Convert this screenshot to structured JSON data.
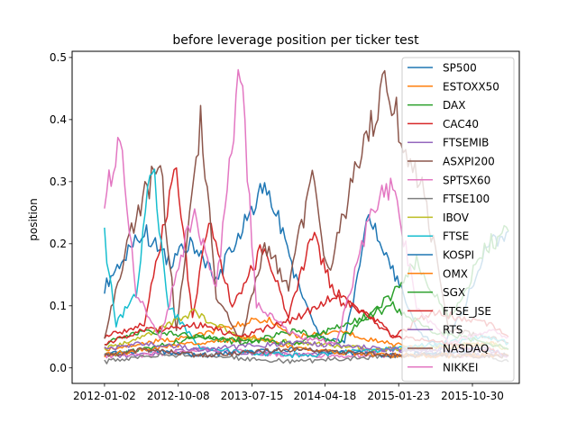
{
  "chart_data": {
    "type": "line",
    "title": "before leverage position per ticker test",
    "xlabel": "",
    "ylabel": "position",
    "x_range": [
      "2011-09-01",
      "2016-04-25"
    ],
    "ylim": [
      -0.025,
      0.51
    ],
    "x_ticks": [
      "2012-01-02",
      "2012-10-08",
      "2013-07-15",
      "2014-04-18",
      "2015-01-23",
      "2015-10-30"
    ],
    "y_ticks": [
      "0.0",
      "0.1",
      "0.2",
      "0.3",
      "0.4",
      "0.5"
    ],
    "grid": false,
    "legend_position": "upper right",
    "series": [
      {
        "name": "SP500",
        "color": "#1f77b4",
        "points": [
          [
            "2012-01-02",
            0.13
          ],
          [
            "2012-03-15",
            0.18
          ],
          [
            "2012-06-01",
            0.22
          ],
          [
            "2012-09-01",
            0.17
          ],
          [
            "2012-12-01",
            0.2
          ],
          [
            "2013-03-01",
            0.14
          ],
          [
            "2013-06-01",
            0.22
          ],
          [
            "2013-09-01",
            0.29
          ],
          [
            "2013-11-01",
            0.23
          ],
          [
            "2014-01-15",
            0.12
          ],
          [
            "2014-04-01",
            0.05
          ],
          [
            "2014-07-01",
            0.04
          ],
          [
            "2014-10-01",
            0.24
          ],
          [
            "2015-01-01",
            0.16
          ],
          [
            "2015-04-01",
            0.06
          ],
          [
            "2015-07-01",
            0.03
          ],
          [
            "2015-10-01",
            0.1
          ],
          [
            "2016-01-01",
            0.2
          ],
          [
            "2016-03-15",
            0.22
          ]
        ]
      },
      {
        "name": "ESTOXX50",
        "color": "#ff7f0e",
        "points": [
          [
            "2012-01-02",
            0.03
          ],
          [
            "2012-06-01",
            0.04
          ],
          [
            "2012-12-01",
            0.05
          ],
          [
            "2013-06-01",
            0.07
          ],
          [
            "2013-09-01",
            0.08
          ],
          [
            "2014-01-01",
            0.05
          ],
          [
            "2014-06-01",
            0.06
          ],
          [
            "2014-12-01",
            0.04
          ],
          [
            "2015-06-01",
            0.03
          ],
          [
            "2016-01-01",
            0.04
          ],
          [
            "2016-03-15",
            0.03
          ]
        ]
      },
      {
        "name": "DAX",
        "color": "#2ca02c",
        "points": [
          [
            "2012-01-02",
            0.02
          ],
          [
            "2012-06-01",
            0.03
          ],
          [
            "2013-01-01",
            0.05
          ],
          [
            "2013-06-01",
            0.04
          ],
          [
            "2014-01-01",
            0.06
          ],
          [
            "2014-06-01",
            0.04
          ],
          [
            "2015-01-01",
            0.12
          ],
          [
            "2015-04-01",
            0.17
          ],
          [
            "2015-08-01",
            0.08
          ],
          [
            "2016-01-01",
            0.2
          ],
          [
            "2016-03-15",
            0.22
          ]
        ]
      },
      {
        "name": "CAC40",
        "color": "#d62728",
        "points": [
          [
            "2012-01-02",
            0.05
          ],
          [
            "2012-06-01",
            0.07
          ],
          [
            "2012-10-01",
            0.33
          ],
          [
            "2012-12-01",
            0.08
          ],
          [
            "2013-02-01",
            0.24
          ],
          [
            "2013-05-01",
            0.1
          ],
          [
            "2013-09-01",
            0.2
          ],
          [
            "2013-12-01",
            0.08
          ],
          [
            "2014-03-01",
            0.22
          ],
          [
            "2014-06-01",
            0.11
          ],
          [
            "2014-10-01",
            0.09
          ],
          [
            "2015-01-01",
            0.05
          ],
          [
            "2015-06-01",
            0.09
          ],
          [
            "2016-01-01",
            0.07
          ],
          [
            "2016-03-15",
            0.05
          ]
        ]
      },
      {
        "name": "FTSEMIB",
        "color": "#9467bd",
        "points": [
          [
            "2012-01-02",
            0.02
          ],
          [
            "2012-06-01",
            0.02
          ],
          [
            "2013-01-01",
            0.03
          ],
          [
            "2014-01-01",
            0.02
          ],
          [
            "2015-01-01",
            0.03
          ],
          [
            "2016-01-01",
            0.02
          ],
          [
            "2016-03-15",
            0.02
          ]
        ]
      },
      {
        "name": "ASXPI200",
        "color": "#8c564b",
        "points": [
          [
            "2012-01-02",
            0.05
          ],
          [
            "2012-03-01",
            0.15
          ],
          [
            "2012-05-01",
            0.25
          ],
          [
            "2012-08-01",
            0.33
          ],
          [
            "2012-10-01",
            0.06
          ],
          [
            "2013-01-01",
            0.4
          ],
          [
            "2013-03-01",
            0.12
          ],
          [
            "2013-06-01",
            0.04
          ],
          [
            "2013-09-01",
            0.2
          ],
          [
            "2013-12-01",
            0.13
          ],
          [
            "2014-03-01",
            0.31
          ],
          [
            "2014-05-01",
            0.15
          ],
          [
            "2014-08-01",
            0.3
          ],
          [
            "2014-10-01",
            0.37
          ],
          [
            "2014-12-01",
            0.48
          ],
          [
            "2015-02-01",
            0.38
          ],
          [
            "2015-05-01",
            0.28
          ],
          [
            "2015-08-01",
            0.06
          ],
          [
            "2016-01-01",
            0.05
          ],
          [
            "2016-03-15",
            0.04
          ]
        ]
      },
      {
        "name": "SPTSX60",
        "color": "#e377c2",
        "points": [
          [
            "2012-01-02",
            0.02
          ],
          [
            "2012-06-01",
            0.02
          ],
          [
            "2013-01-01",
            0.03
          ],
          [
            "2014-01-01",
            0.02
          ],
          [
            "2015-01-01",
            0.02
          ],
          [
            "2016-01-01",
            0.02
          ],
          [
            "2016-03-15",
            0.02
          ]
        ]
      },
      {
        "name": "FTSE100",
        "color": "#7f7f7f",
        "points": [
          [
            "2012-01-02",
            0.01
          ],
          [
            "2012-06-01",
            0.02
          ],
          [
            "2013-01-01",
            0.02
          ],
          [
            "2014-01-01",
            0.01
          ],
          [
            "2015-01-01",
            0.02
          ],
          [
            "2016-01-01",
            0.02
          ],
          [
            "2016-03-15",
            0.01
          ]
        ]
      },
      {
        "name": "IBOV",
        "color": "#bcbd22",
        "points": [
          [
            "2012-01-02",
            0.03
          ],
          [
            "2012-06-01",
            0.05
          ],
          [
            "2012-12-01",
            0.09
          ],
          [
            "2013-06-01",
            0.05
          ],
          [
            "2014-01-01",
            0.04
          ],
          [
            "2015-01-01",
            0.03
          ],
          [
            "2016-01-01",
            0.04
          ],
          [
            "2016-03-15",
            0.03
          ]
        ]
      },
      {
        "name": "FTSE",
        "color": "#17becf",
        "points": [
          [
            "2012-01-02",
            0.21
          ],
          [
            "2012-02-15",
            0.07
          ],
          [
            "2012-05-01",
            0.12
          ],
          [
            "2012-07-01",
            0.33
          ],
          [
            "2012-09-01",
            0.1
          ],
          [
            "2013-01-01",
            0.03
          ],
          [
            "2014-01-01",
            0.02
          ],
          [
            "2015-01-01",
            0.03
          ],
          [
            "2016-01-01",
            0.05
          ],
          [
            "2016-03-15",
            0.04
          ]
        ]
      },
      {
        "name": "KOSPI",
        "color": "#1f77b4",
        "points": [
          [
            "2012-01-02",
            0.02
          ],
          [
            "2012-06-01",
            0.03
          ],
          [
            "2013-01-01",
            0.02
          ],
          [
            "2014-01-01",
            0.03
          ],
          [
            "2015-01-01",
            0.02
          ],
          [
            "2016-01-01",
            0.03
          ],
          [
            "2016-03-15",
            0.02
          ]
        ]
      },
      {
        "name": "OMX",
        "color": "#ff7f0e",
        "points": [
          [
            "2012-01-02",
            0.02
          ],
          [
            "2012-06-01",
            0.03
          ],
          [
            "2013-01-01",
            0.04
          ],
          [
            "2013-08-01",
            0.05
          ],
          [
            "2014-01-01",
            0.03
          ],
          [
            "2015-01-01",
            0.02
          ],
          [
            "2016-01-01",
            0.02
          ],
          [
            "2016-03-15",
            0.02
          ]
        ]
      },
      {
        "name": "SGX",
        "color": "#2ca02c",
        "points": [
          [
            "2012-01-02",
            0.04
          ],
          [
            "2012-06-01",
            0.06
          ],
          [
            "2013-01-01",
            0.05
          ],
          [
            "2014-01-01",
            0.04
          ],
          [
            "2015-01-01",
            0.1
          ],
          [
            "2015-06-01",
            0.06
          ],
          [
            "2016-01-01",
            0.04
          ],
          [
            "2016-03-15",
            0.03
          ]
        ]
      },
      {
        "name": "FTSE_JSE",
        "color": "#d62728",
        "points": [
          [
            "2012-01-02",
            0.04
          ],
          [
            "2012-06-01",
            0.06
          ],
          [
            "2013-01-01",
            0.07
          ],
          [
            "2013-06-01",
            0.05
          ],
          [
            "2014-01-01",
            0.08
          ],
          [
            "2014-06-01",
            0.12
          ],
          [
            "2015-01-01",
            0.05
          ],
          [
            "2016-01-01",
            0.03
          ],
          [
            "2016-03-15",
            0.02
          ]
        ]
      },
      {
        "name": "RTS",
        "color": "#9467bd",
        "points": [
          [
            "2012-01-02",
            0.03
          ],
          [
            "2012-06-01",
            0.04
          ],
          [
            "2013-01-01",
            0.03
          ],
          [
            "2014-01-01",
            0.04
          ],
          [
            "2015-01-01",
            0.03
          ],
          [
            "2016-01-01",
            0.03
          ],
          [
            "2016-03-15",
            0.02
          ]
        ]
      },
      {
        "name": "NASDAQ",
        "color": "#8c564b",
        "points": [
          [
            "2012-01-02",
            0.02
          ],
          [
            "2012-06-01",
            0.03
          ],
          [
            "2013-01-01",
            0.02
          ],
          [
            "2014-01-01",
            0.03
          ],
          [
            "2015-01-01",
            0.02
          ],
          [
            "2016-01-01",
            0.02
          ],
          [
            "2016-03-15",
            0.02
          ]
        ]
      },
      {
        "name": "NIKKEI",
        "color": "#e377c2",
        "points": [
          [
            "2012-01-02",
            0.27
          ],
          [
            "2012-03-01",
            0.37
          ],
          [
            "2012-05-01",
            0.12
          ],
          [
            "2012-08-01",
            0.05
          ],
          [
            "2012-12-01",
            0.25
          ],
          [
            "2013-03-01",
            0.13
          ],
          [
            "2013-06-01",
            0.48
          ],
          [
            "2013-08-01",
            0.1
          ],
          [
            "2014-01-01",
            0.05
          ],
          [
            "2014-06-01",
            0.04
          ],
          [
            "2014-10-01",
            0.24
          ],
          [
            "2015-01-01",
            0.3
          ],
          [
            "2015-04-01",
            0.1
          ],
          [
            "2015-08-01",
            0.04
          ],
          [
            "2016-01-01",
            0.06
          ],
          [
            "2016-03-15",
            0.05
          ]
        ]
      }
    ]
  }
}
